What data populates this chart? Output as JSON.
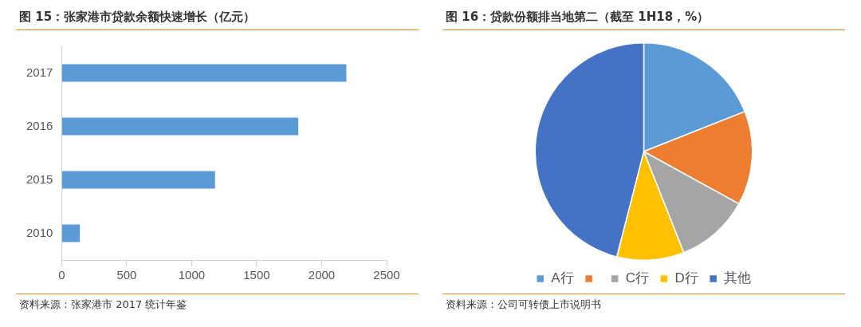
{
  "chart_data": [
    {
      "type": "bar",
      "title": "图 15：张家港市贷款余额快速增长（亿元）",
      "orientation": "horizontal",
      "categories": [
        "2017",
        "2016",
        "2015",
        "2010"
      ],
      "values": [
        2190,
        1820,
        1180,
        140
      ],
      "color": "#5b9bd5",
      "xlim": [
        0,
        2500
      ],
      "xticks": [
        0,
        500,
        1000,
        1500,
        2000,
        2500
      ],
      "grid": false,
      "legend": false,
      "annotations": [
        "资料来源：张家港市 2017 统计年鉴"
      ]
    },
    {
      "type": "pie",
      "title": "图 16：贷款份额排当地第二（截至 1H18，%）",
      "categories": [
        "A行",
        null,
        "C行",
        "D行",
        "其他"
      ],
      "values": [
        19,
        14,
        11,
        10,
        46
      ],
      "colors": [
        "#5b9bd5",
        "#ed7d31",
        "#a5a5a5",
        "#ffc000",
        "#4472c4"
      ],
      "legend": "bottom",
      "annotations": [
        "资料来源：公司可转债上市说明书"
      ]
    }
  ]
}
